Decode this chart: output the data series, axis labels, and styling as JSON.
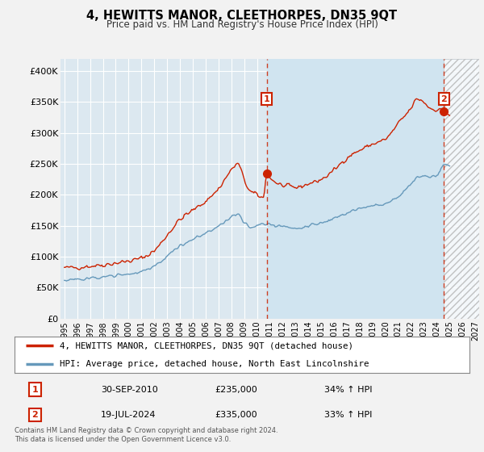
{
  "title": "4, HEWITTS MANOR, CLEETHORPES, DN35 9QT",
  "subtitle": "Price paid vs. HM Land Registry's House Price Index (HPI)",
  "background_color": "#f2f2f2",
  "plot_bg_color": "#dce8f0",
  "plot_bg_color2": "#ccdde8",
  "grid_color": "#ffffff",
  "red_line_color": "#cc2200",
  "blue_line_color": "#6699bb",
  "ylim": [
    0,
    420000
  ],
  "yticks": [
    0,
    50000,
    100000,
    150000,
    200000,
    250000,
    300000,
    350000,
    400000
  ],
  "ytick_labels": [
    "£0",
    "£50K",
    "£100K",
    "£150K",
    "£200K",
    "£250K",
    "£300K",
    "£350K",
    "£400K"
  ],
  "xlim_left": 1994.7,
  "xlim_right": 2027.3,
  "xtick_years": [
    1995,
    1996,
    1997,
    1998,
    1999,
    2000,
    2001,
    2002,
    2003,
    2004,
    2005,
    2006,
    2007,
    2008,
    2009,
    2010,
    2011,
    2012,
    2013,
    2014,
    2015,
    2016,
    2017,
    2018,
    2019,
    2020,
    2021,
    2022,
    2023,
    2024,
    2025,
    2026,
    2027
  ],
  "transaction1_x": 2010.75,
  "transaction1_y": 235000,
  "transaction2_x": 2024.55,
  "transaction2_y": 335000,
  "shade_start": 2010.75,
  "shade_end": 2024.55,
  "hatch_start": 2024.55,
  "legend_red": "4, HEWITTS MANOR, CLEETHORPES, DN35 9QT (detached house)",
  "legend_blue": "HPI: Average price, detached house, North East Lincolnshire",
  "table_data": [
    {
      "num": "1",
      "date": "30-SEP-2010",
      "price": "£235,000",
      "pct": "34% ↑ HPI"
    },
    {
      "num": "2",
      "date": "19-JUL-2024",
      "price": "£335,000",
      "pct": "33% ↑ HPI"
    }
  ],
  "footer": "Contains HM Land Registry data © Crown copyright and database right 2024.\nThis data is licensed under the Open Government Licence v3.0."
}
